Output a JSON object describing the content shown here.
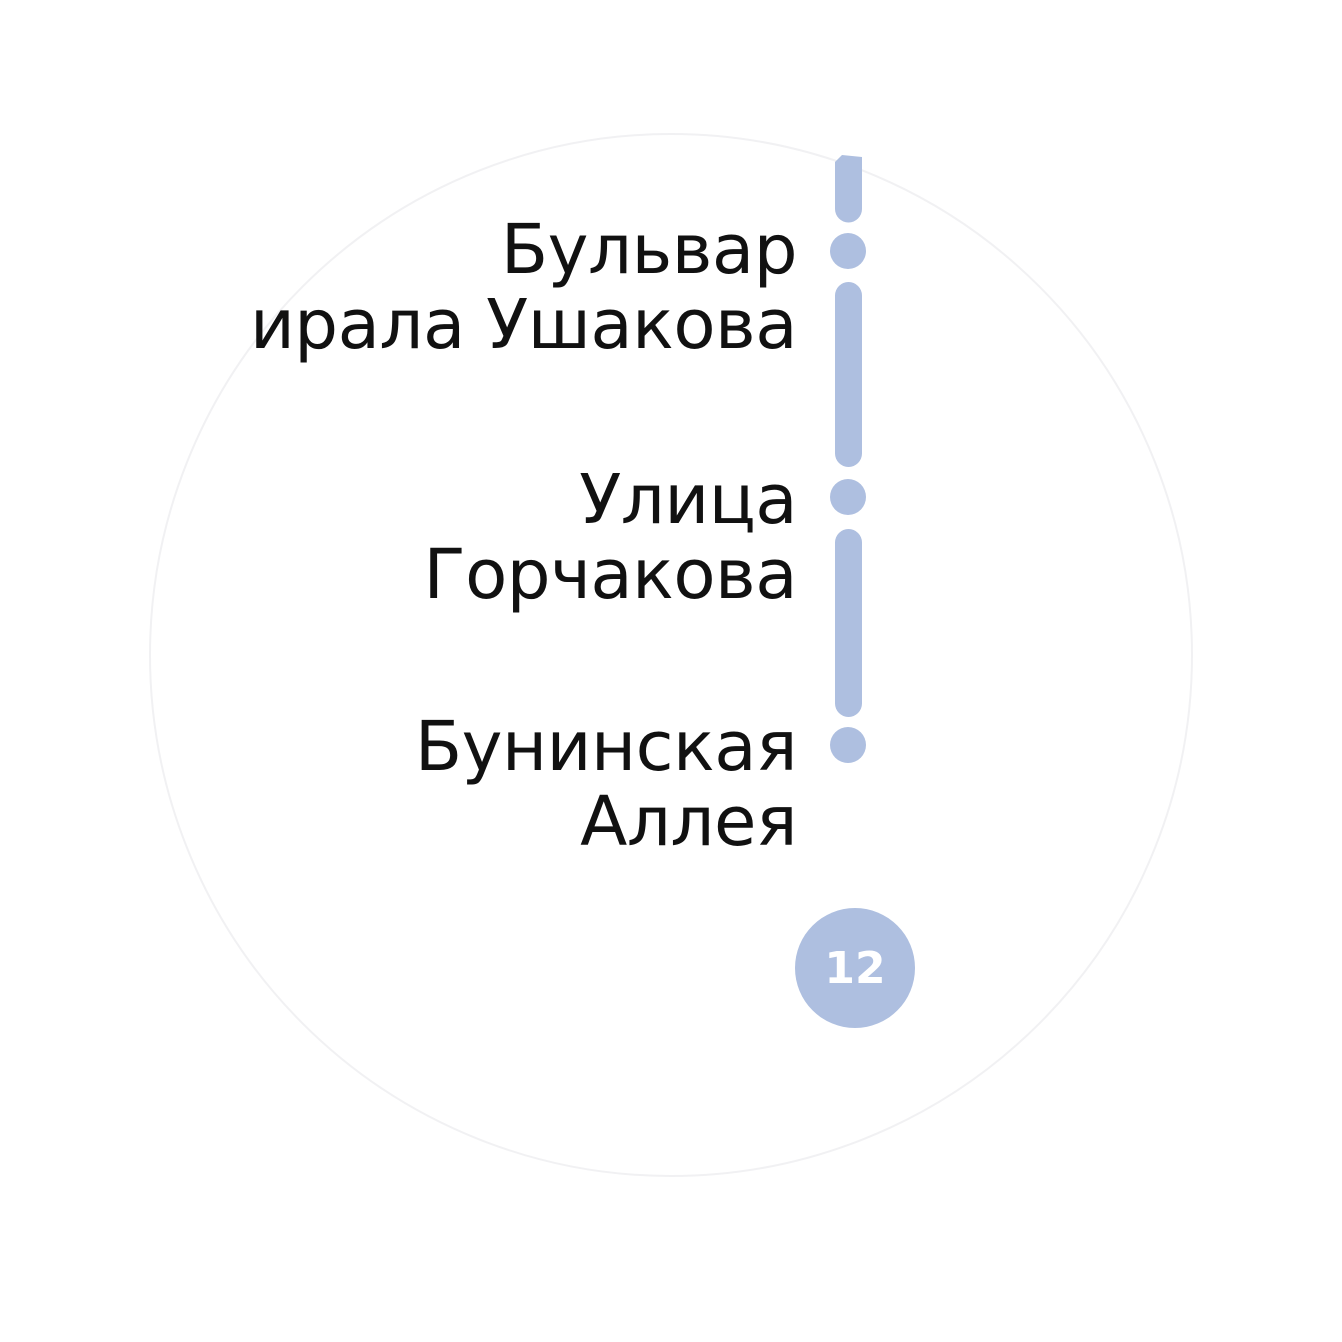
{
  "line": {
    "number": "12",
    "color": "#aebfe0"
  },
  "stations": [
    {
      "name_lines": [
        "Бульвар",
        "ирала Ушакова"
      ]
    },
    {
      "name_lines": [
        "Улица",
        "Горчакова"
      ]
    },
    {
      "name_lines": [
        "Бунинская",
        "Аллея"
      ]
    }
  ],
  "colors": {
    "label_text": "#111111",
    "background": "#ffffff"
  }
}
